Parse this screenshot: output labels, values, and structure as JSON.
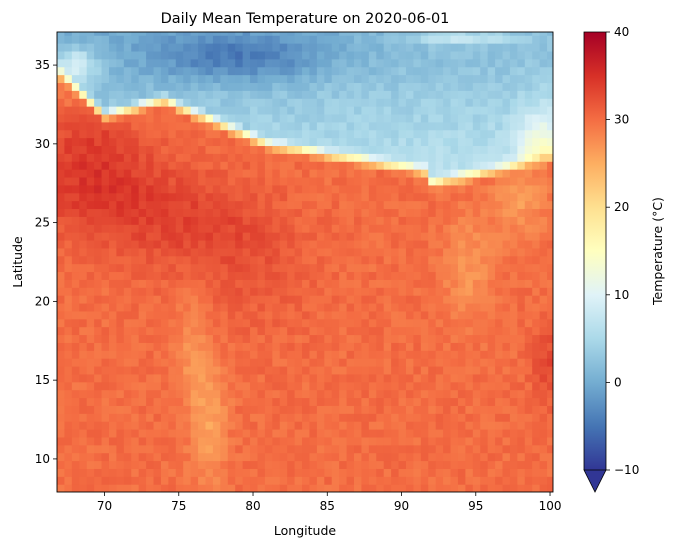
{
  "chart_data": {
    "type": "heatmap",
    "title": "Daily Mean Temperature on 2020-06-01",
    "xlabel": "Longitude",
    "ylabel": "Latitude",
    "xlim": [
      66.8,
      100.2
    ],
    "ylim": [
      7.9,
      37.1
    ],
    "xticks": [
      70,
      75,
      80,
      85,
      90,
      95,
      100
    ],
    "yticks": [
      10,
      15,
      20,
      25,
      30,
      35
    ],
    "colorbar": {
      "label": "Temperature (°C)",
      "range": [
        -10,
        40
      ],
      "ticks": [
        -10,
        0,
        10,
        20,
        30,
        40
      ],
      "extend": "min",
      "colormap": "RdYlBu_r"
    },
    "grid": false,
    "regions": {
      "himalaya_tibet_plateau": "-5 to 10",
      "northwest_india_pakistan_plains": "34 to 36",
      "central_india": "31 to 34",
      "bay_of_bengal_arabian_sea": "28 to 31",
      "western_ghats_northeast_hills": "18 to 24"
    }
  }
}
